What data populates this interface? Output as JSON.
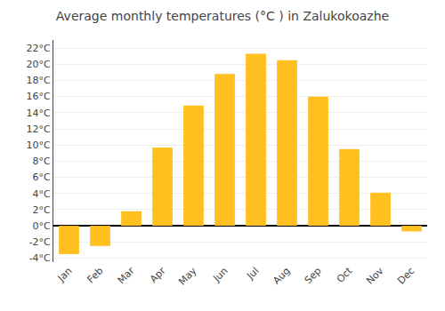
{
  "chart_data": {
    "type": "bar",
    "title": "Average monthly temperatures (°C ) in Zalukokoazhe",
    "categories": [
      "Jan",
      "Feb",
      "Mar",
      "Apr",
      "May",
      "Jun",
      "Jul",
      "Aug",
      "Sep",
      "Oct",
      "Nov",
      "Dec"
    ],
    "values": [
      -3.5,
      -2.5,
      1.8,
      9.7,
      14.9,
      18.8,
      21.3,
      20.5,
      16.0,
      9.5,
      4.1,
      -0.7
    ],
    "color": "#FFC020",
    "ylim": [
      -4.5,
      23
    ],
    "yticks": [
      {
        "value": -4,
        "label": "-4°C"
      },
      {
        "value": -2,
        "label": "-2°C"
      },
      {
        "value": 0,
        "label": "0°C"
      },
      {
        "value": 2,
        "label": "2°C"
      },
      {
        "value": 4,
        "label": "4°C"
      },
      {
        "value": 6,
        "label": "6°C"
      },
      {
        "value": 8,
        "label": "8°C"
      },
      {
        "value": 10,
        "label": "10°C"
      },
      {
        "value": 12,
        "label": "12°C"
      },
      {
        "value": 14,
        "label": "14°C"
      },
      {
        "value": 16,
        "label": "16°C"
      },
      {
        "value": 18,
        "label": "18°C"
      },
      {
        "value": 20,
        "label": "20°C"
      },
      {
        "value": 22,
        "label": "22°C"
      }
    ],
    "grid": true
  }
}
